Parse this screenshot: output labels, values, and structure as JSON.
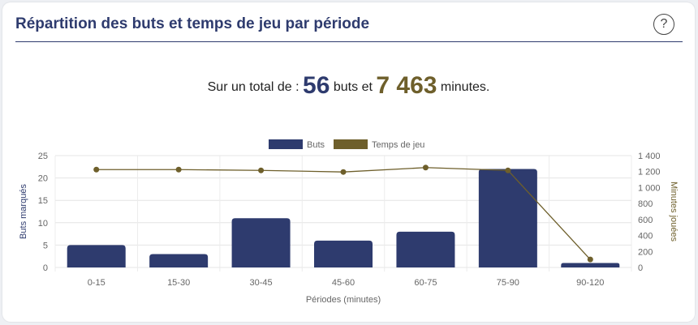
{
  "card": {
    "title": "Répartition des buts et temps de jeu par période",
    "help_label": "?"
  },
  "summary": {
    "prefix": "Sur un total de :",
    "goals_total": "56",
    "goals_unit": "buts et",
    "minutes_total": "7 463",
    "minutes_unit": "minutes."
  },
  "colors": {
    "goals": "#2e3b6e",
    "minutes": "#6e5f2b"
  },
  "chart_data": {
    "type": "bar",
    "categories": [
      "0-15",
      "15-30",
      "30-45",
      "45-60",
      "60-75",
      "75-90",
      "90-120"
    ],
    "series": [
      {
        "name": "Buts",
        "type": "bar",
        "axis": "left",
        "values": [
          5,
          3,
          11,
          6,
          8,
          22,
          1
        ]
      },
      {
        "name": "Temps de jeu",
        "type": "line",
        "axis": "right",
        "values": [
          1225,
          1225,
          1215,
          1195,
          1250,
          1215,
          100
        ]
      }
    ],
    "xlabel": "Périodes (minutes)",
    "ylabel": "Buts marqués",
    "y2label": "Minutes jouées",
    "ylim": [
      0,
      25
    ],
    "y2lim": [
      0,
      1400
    ],
    "yticks": [
      "0",
      "5",
      "10",
      "15",
      "20",
      "25"
    ],
    "y2ticks": [
      "0",
      "200",
      "400",
      "600",
      "800",
      "1 000",
      "1 200",
      "1 400"
    ],
    "grid": true,
    "legend": "top"
  }
}
